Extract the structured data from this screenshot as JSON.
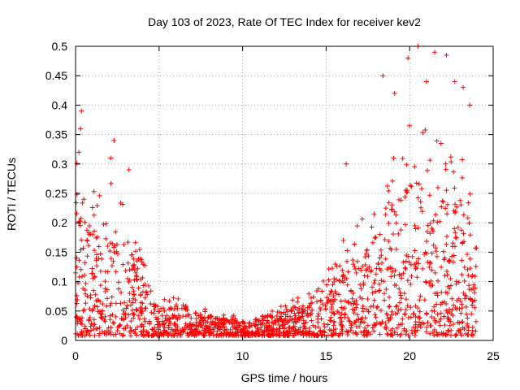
{
  "chart_data": {
    "type": "scatter",
    "title": "Day 103 of 2023, Rate Of TEC Index for receiver kev2",
    "xlabel": "GPS time / hours",
    "ylabel": "ROTI / TECUs",
    "xlim": [
      0,
      25
    ],
    "ylim": [
      0,
      0.5
    ],
    "xticks": [
      0,
      5,
      10,
      15,
      20,
      25
    ],
    "xtick_labels": [
      "0",
      "5",
      "10",
      "15",
      "20",
      "25"
    ],
    "yticks": [
      0,
      0.05,
      0.1,
      0.15,
      0.2,
      0.25,
      0.3,
      0.35,
      0.4,
      0.45,
      0.5
    ],
    "ytick_labels": [
      "0",
      "0.05",
      "0.1",
      "0.15",
      "0.2",
      "0.25",
      "0.3",
      "0.35",
      "0.4",
      "0.45",
      "0.5"
    ],
    "grid": true,
    "marker": "+",
    "marker_color": "#ff0000",
    "envelope": {
      "x": [
        0,
        0.5,
        1,
        1.5,
        2,
        2.5,
        3,
        3.5,
        4,
        4.5,
        5,
        5.5,
        6,
        6.5,
        7,
        7.5,
        8,
        8.5,
        9,
        9.5,
        10,
        10.5,
        11,
        11.5,
        12,
        12.5,
        13,
        13.5,
        14,
        14.5,
        15,
        15.5,
        16,
        16.5,
        17,
        17.5,
        18,
        18.5,
        19,
        19.5,
        20,
        20.5,
        21,
        21.5,
        22,
        22.5,
        23,
        23.5,
        24
      ],
      "upper": [
        0.22,
        0.2,
        0.18,
        0.17,
        0.18,
        0.2,
        0.17,
        0.13,
        0.1,
        0.07,
        0.05,
        0.05,
        0.05,
        0.05,
        0.04,
        0.04,
        0.035,
        0.03,
        0.03,
        0.03,
        0.025,
        0.025,
        0.03,
        0.035,
        0.04,
        0.045,
        0.05,
        0.05,
        0.055,
        0.065,
        0.08,
        0.1,
        0.12,
        0.13,
        0.14,
        0.15,
        0.18,
        0.2,
        0.22,
        0.24,
        0.26,
        0.26,
        0.26,
        0.25,
        0.24,
        0.23,
        0.22,
        0.2,
        0.18
      ]
    },
    "outliers": [
      {
        "x": 0.35,
        "y": 0.39
      },
      {
        "x": 0.3,
        "y": 0.36
      },
      {
        "x": 0.2,
        "y": 0.32
      },
      {
        "x": 2.3,
        "y": 0.34
      },
      {
        "x": 2.1,
        "y": 0.31
      },
      {
        "x": 3.2,
        "y": 0.29
      },
      {
        "x": 16.2,
        "y": 0.3
      },
      {
        "x": 18.4,
        "y": 0.45
      },
      {
        "x": 19.1,
        "y": 0.42
      },
      {
        "x": 19.9,
        "y": 0.48
      },
      {
        "x": 20.5,
        "y": 0.5
      },
      {
        "x": 21.5,
        "y": 0.49
      },
      {
        "x": 22.2,
        "y": 0.485
      },
      {
        "x": 23.2,
        "y": 0.43
      },
      {
        "x": 22.7,
        "y": 0.44
      },
      {
        "x": 23.6,
        "y": 0.4
      },
      {
        "x": 21.0,
        "y": 0.44
      }
    ]
  }
}
